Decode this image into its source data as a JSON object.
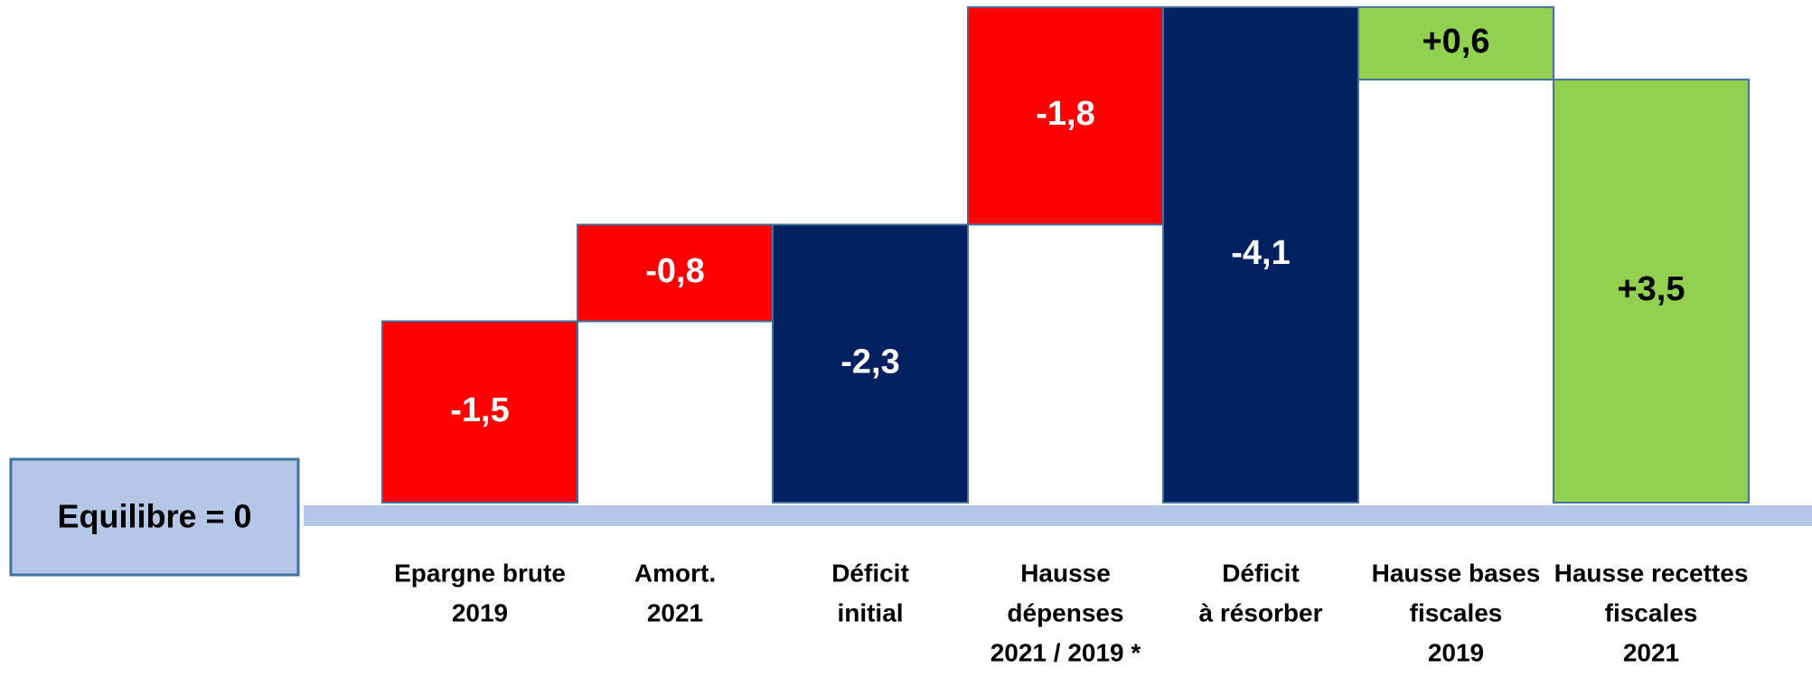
{
  "chart_data": {
    "type": "waterfall",
    "annotation": "Equilibre = 0",
    "categories": [
      [
        "Epargne brute",
        "2019"
      ],
      [
        "Amort.",
        "2021"
      ],
      [
        "Déficit",
        "initial"
      ],
      [
        "Hausse",
        "dépenses",
        "2021 / 2019 *"
      ],
      [
        "Déficit",
        "à résorber"
      ],
      [
        "Hausse bases",
        "fiscales",
        "2019"
      ],
      [
        "Hausse recettes",
        "fiscales",
        "2021"
      ]
    ],
    "values": [
      -1.5,
      -0.8,
      -2.3,
      -1.8,
      -4.1,
      0.6,
      3.5
    ],
    "value_labels": [
      "-1,5",
      "-0,8",
      "-2,3",
      "-1,8",
      "-4,1",
      "+0,6",
      "+3,5"
    ],
    "colors": {
      "decrease": "#ff0000",
      "total": "#002060",
      "increase": "#92d050",
      "baseline": "#b4c7e7"
    }
  }
}
